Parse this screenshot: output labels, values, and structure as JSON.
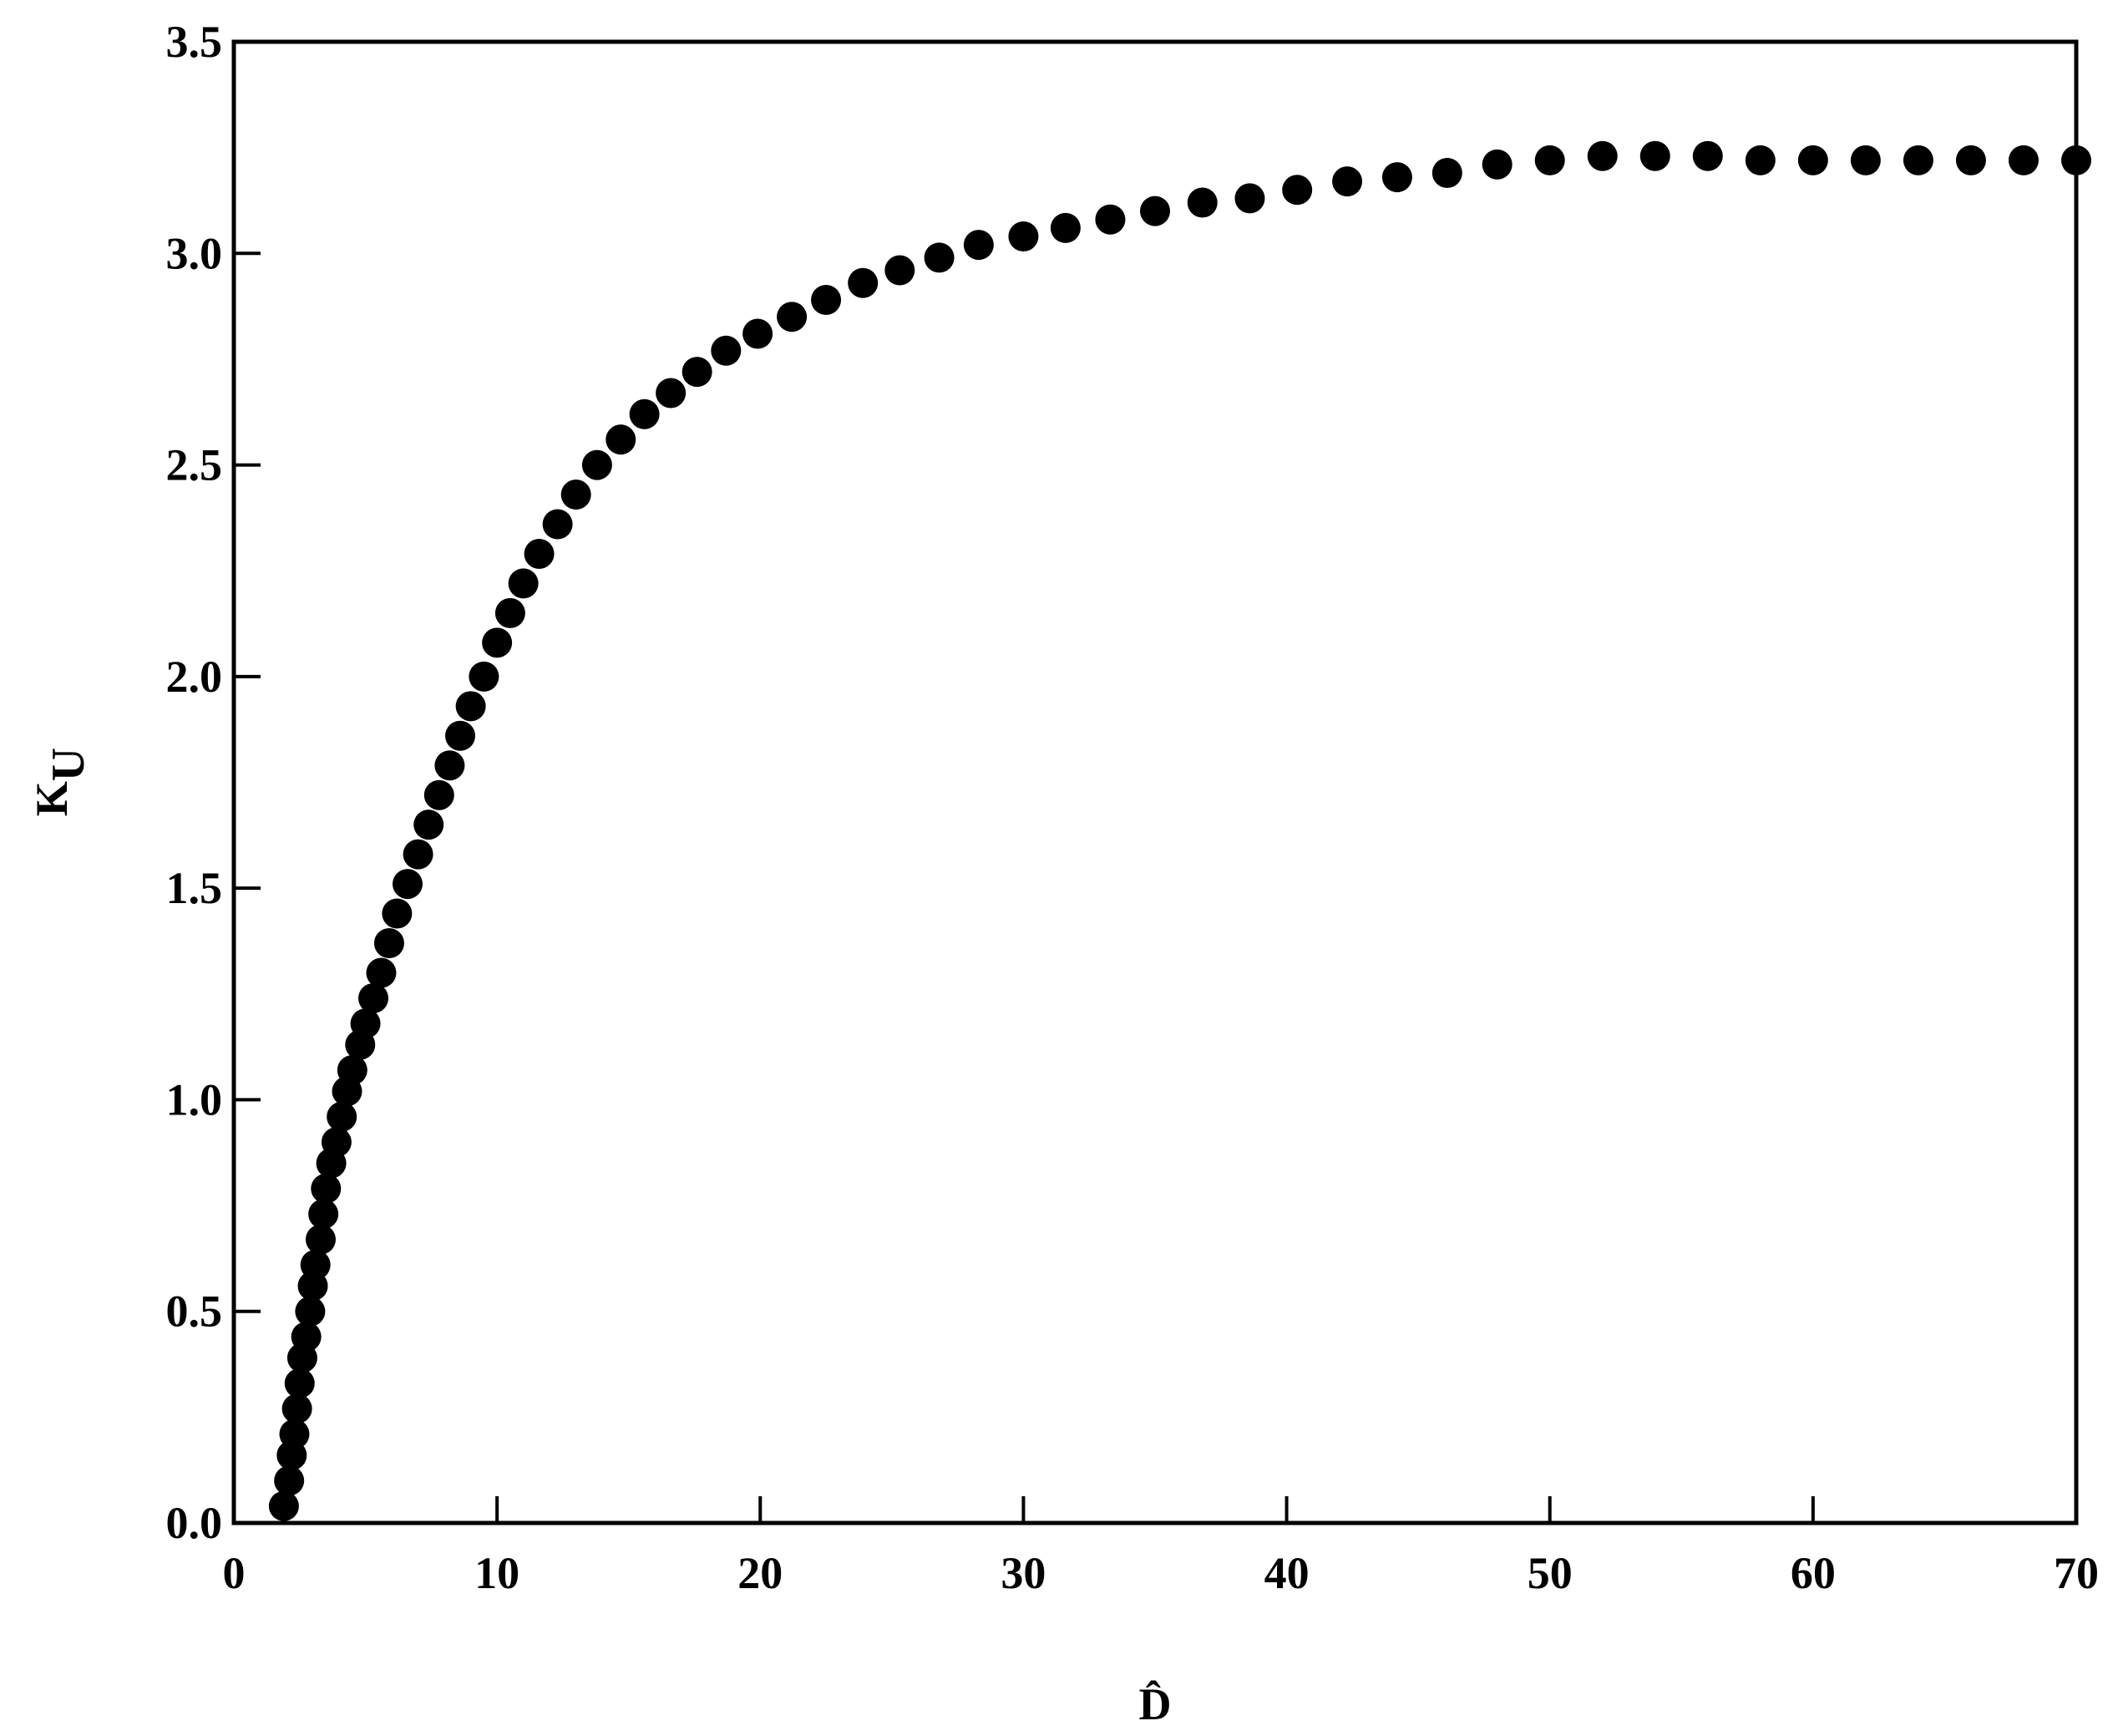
{
  "chart_data": {
    "type": "scatter",
    "xlabel": "D̂",
    "ylabel": {
      "main": "K",
      "sub": "U"
    },
    "color": "#000000",
    "x": [
      1.9,
      2.1,
      2.2,
      2.3,
      2.4,
      2.5,
      2.6,
      2.75,
      2.9,
      3.0,
      3.1,
      3.3,
      3.4,
      3.5,
      3.7,
      3.9,
      4.1,
      4.3,
      4.5,
      4.8,
      5.0,
      5.3,
      5.6,
      5.9,
      6.2,
      6.6,
      7.0,
      7.4,
      7.8,
      8.2,
      8.6,
      9.0,
      9.5,
      10,
      10.5,
      11,
      11.6,
      12.3,
      13,
      13.8,
      14.7,
      15.6,
      16.6,
      17.6,
      18.7,
      19.9,
      21.2,
      22.5,
      23.9,
      25.3,
      26.8,
      28.3,
      30,
      31.6,
      33.3,
      35,
      36.8,
      38.6,
      40.4,
      42.3,
      44.2,
      46.1,
      48,
      50,
      52,
      54,
      56,
      58,
      60,
      62,
      64,
      66,
      68,
      70
    ],
    "y": [
      0.04,
      0.1,
      0.16,
      0.21,
      0.27,
      0.33,
      0.39,
      0.44,
      0.5,
      0.56,
      0.61,
      0.67,
      0.73,
      0.79,
      0.85,
      0.9,
      0.96,
      1.02,
      1.07,
      1.13,
      1.18,
      1.24,
      1.3,
      1.37,
      1.44,
      1.51,
      1.58,
      1.65,
      1.72,
      1.79,
      1.86,
      1.93,
      2.0,
      2.08,
      2.15,
      2.22,
      2.29,
      2.36,
      2.43,
      2.5,
      2.56,
      2.62,
      2.67,
      2.72,
      2.77,
      2.81,
      2.85,
      2.89,
      2.93,
      2.96,
      2.99,
      3.02,
      3.04,
      3.06,
      3.08,
      3.1,
      3.12,
      3.13,
      3.15,
      3.17,
      3.18,
      3.19,
      3.21,
      3.22,
      3.23,
      3.23,
      3.23,
      3.22,
      3.22,
      3.22,
      3.22,
      3.22,
      3.22,
      3.22
    ],
    "xlim": [
      0,
      70
    ],
    "xticks": [
      0,
      10,
      20,
      30,
      40,
      50,
      60,
      70
    ],
    "ylim": [
      0,
      3.5
    ],
    "yticks": [
      {
        "value": 0,
        "label": "0.0"
      },
      0.5,
      {
        "value": 1,
        "label": "1.0"
      },
      1.5,
      {
        "value": 2,
        "label": "2.0"
      },
      2.5,
      {
        "value": 3,
        "label": "3.0"
      },
      3.5
    ]
  }
}
